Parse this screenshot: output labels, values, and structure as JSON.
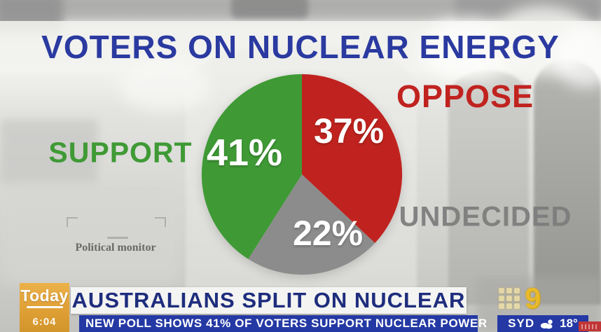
{
  "title": "VOTERS ON NUCLEAR ENERGY",
  "chart_data": {
    "type": "pie",
    "title": "VOTERS ON NUCLEAR ENERGY",
    "order_note": "slices listed clockwise starting at 12 o'clock",
    "slices": [
      {
        "label": "OPPOSE",
        "value": 37,
        "pct_label": "37%",
        "color": "#c0231f"
      },
      {
        "label": "UNDECIDED",
        "value": 22,
        "pct_label": "22%",
        "color": "#8c8c8c"
      },
      {
        "label": "SUPPORT",
        "value": 41,
        "pct_label": "41%",
        "color": "#3f9a35"
      }
    ],
    "value_label_color": "#ffffff",
    "legend_position": "labels around pie",
    "source": "Political monitor"
  },
  "watermark": {
    "source_label": "Political monitor"
  },
  "lower_third": {
    "show_logo": "Today",
    "time": "6:04",
    "headline": "AUSTRALIANS SPLIT ON NUCLEAR",
    "ticker": "NEW POLL SHOWS 41% OF VOTERS SUPPORT NUCLEAR POWER",
    "network_logo": "9",
    "weather": {
      "city": "SYD",
      "temperature": "18°",
      "icon": "partly-cloudy"
    }
  },
  "colors": {
    "title_blue": "#2a3aa0",
    "headline_blue": "#1e2d7d",
    "ticker_bar_blue": "#2439a4",
    "today_orange": "#e3a33b",
    "nine_yellow": "#e8b92a",
    "support_green": "#3f9a35",
    "oppose_red": "#c0231f",
    "undecided_gray": "#7c7c7c"
  }
}
